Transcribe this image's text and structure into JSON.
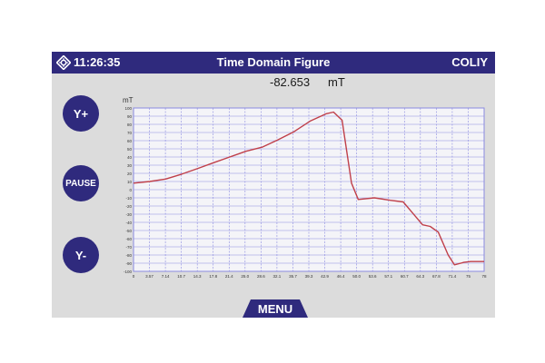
{
  "status_bar": {
    "time": "11:26:35",
    "title": "Time Domain Figure",
    "brand": "COLIY"
  },
  "readout": {
    "value": "-82.653",
    "unit": "mT"
  },
  "buttons": {
    "y_plus": "Y+",
    "pause": "PAUSE",
    "y_minus": "Y-",
    "menu": "MENU"
  },
  "colors": {
    "bar": "#2f2a7d",
    "screen": "#dcdcdc",
    "trace": "#c0404a",
    "grid": "#8a8ae0"
  },
  "icons": {
    "status": "settings-diamond-icon"
  },
  "chart_data": {
    "type": "line",
    "ylabel": "mT",
    "ylim": [
      -100,
      100
    ],
    "ytick_step": 5,
    "yticks_labeled": [
      100,
      90,
      80,
      70,
      60,
      50,
      40,
      30,
      20,
      10,
      0,
      -10,
      -20,
      -30,
      -40,
      -50,
      -60,
      -70,
      -80,
      -90,
      -100
    ],
    "xtick_labels": [
      "0",
      "3.57",
      "7.14",
      "10.7",
      "14.3",
      "17.8",
      "21.4",
      "25.0",
      "28.6",
      "32.1",
      "35.7",
      "39.3",
      "42.9",
      "46.4",
      "50.0",
      "53.6",
      "57.1",
      "60.7",
      "64.3",
      "67.8",
      "71.4",
      "75",
      "78"
    ],
    "grid": true,
    "series": [
      {
        "x": [
          0,
          3.57,
          7.14,
          10.7,
          14.3,
          17.8,
          21.4,
          25.0,
          28.6,
          32.1,
          35.7,
          39.3,
          42.9,
          44.5,
          46.4,
          48.5,
          50.0,
          53.6,
          57.1,
          60.0,
          62.0,
          64.3,
          66.0,
          67.8,
          70.0,
          71.4,
          73.5,
          75,
          78
        ],
        "y": [
          8,
          10,
          13,
          19,
          26,
          33,
          40,
          47,
          52,
          61,
          71,
          84,
          93,
          95,
          85,
          8,
          -12,
          -10,
          -13,
          -15,
          -28,
          -43,
          -45,
          -52,
          -80,
          -92,
          -89,
          -88,
          -88
        ]
      }
    ]
  }
}
